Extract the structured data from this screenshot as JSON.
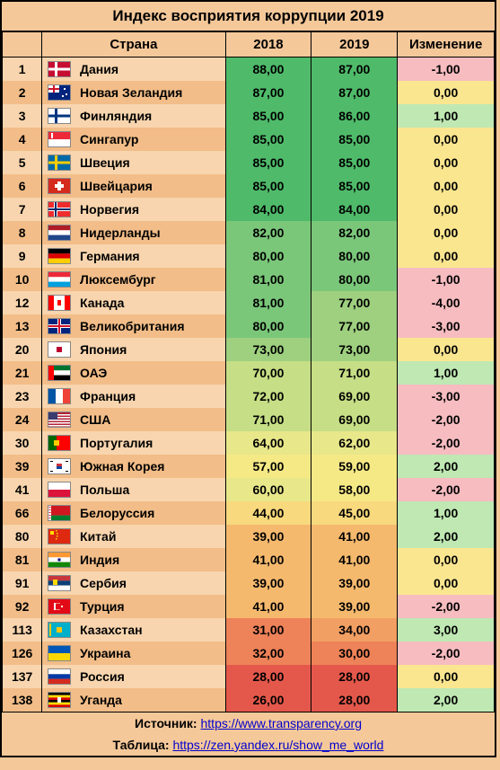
{
  "title": "Индекс восприятия коррупции 2019",
  "columns": {
    "rank": "",
    "country": "Страна",
    "y2018": "2018",
    "y2019": "2019",
    "change": "Изменение"
  },
  "col_widths": {
    "rank": 36,
    "flag": 30,
    "country": 160,
    "val": 90,
    "change": 100
  },
  "fonts": {
    "title": 17,
    "header": 15,
    "cell": 14,
    "footer": 14
  },
  "stripe_colors": {
    "odd": "#f8d5ae",
    "even": "#f2bd88",
    "base": "#f5c89a"
  },
  "score_palette": [
    {
      "min": 84,
      "color": "#4fbb6a"
    },
    {
      "min": 80,
      "color": "#7bc77a"
    },
    {
      "min": 73,
      "color": "#9ed07f"
    },
    {
      "min": 69,
      "color": "#c6de85"
    },
    {
      "min": 60,
      "color": "#e8e78a"
    },
    {
      "min": 55,
      "color": "#f5e986"
    },
    {
      "min": 44,
      "color": "#f8d97d"
    },
    {
      "min": 39,
      "color": "#f5b96e"
    },
    {
      "min": 34,
      "color": "#f29f63"
    },
    {
      "min": 30,
      "color": "#ee8258"
    },
    {
      "min": 0,
      "color": "#e4584b"
    }
  ],
  "change_colors": {
    "pos": "#bfe8b3",
    "zero": "#fbe690",
    "neg": "#f6bcc0"
  },
  "rows": [
    {
      "rank": 1,
      "country": "Дания",
      "y2018": 88,
      "y2019": 87,
      "change": -1,
      "flag": [
        [
          "#c60c30",
          "0,0,24,16"
        ],
        [
          "#fff",
          "7,0,3,16"
        ],
        [
          "#fff",
          "0,6.5,24,3"
        ]
      ]
    },
    {
      "rank": 2,
      "country": "Новая Зеландия",
      "y2018": 87,
      "y2019": 87,
      "change": 0,
      "flag": [
        [
          "#00247d",
          "0,0,24,16"
        ],
        [
          "#fff",
          "0,0,12,8"
        ],
        [
          "#cc142b",
          "0,3,12,2"
        ],
        [
          "#cc142b",
          "5,0,2,8"
        ],
        [
          "#fff",
          "17,3,2,2"
        ],
        [
          "#fff",
          "19,9,2,2"
        ],
        [
          "#fff",
          "15,11,2,2"
        ]
      ]
    },
    {
      "rank": 3,
      "country": "Финляндия",
      "y2018": 85,
      "y2019": 86,
      "change": 1,
      "flag": [
        [
          "#fff",
          "0,0,24,16"
        ],
        [
          "#003580",
          "7,0,3,16"
        ],
        [
          "#003580",
          "0,6.5,24,3"
        ]
      ]
    },
    {
      "rank": 4,
      "country": "Сингапур",
      "y2018": 85,
      "y2019": 85,
      "change": 0,
      "flag": [
        [
          "#ed2939",
          "0,0,24,8"
        ],
        [
          "#fff",
          "0,8,24,8"
        ],
        [
          "#fff",
          "3,1,5,6"
        ],
        [
          "#ed2939",
          "5,1,5,6"
        ]
      ]
    },
    {
      "rank": 5,
      "country": "Швеция",
      "y2018": 85,
      "y2019": 85,
      "change": 0,
      "flag": [
        [
          "#006aa7",
          "0,0,24,16"
        ],
        [
          "#fecc00",
          "7,0,3,16"
        ],
        [
          "#fecc00",
          "0,6.5,24,3"
        ]
      ]
    },
    {
      "rank": 6,
      "country": "Швейцария",
      "y2018": 85,
      "y2019": 85,
      "change": 0,
      "flag": [
        [
          "#d52b1e",
          "0,0,24,16"
        ],
        [
          "#fff",
          "10,3,4,10"
        ],
        [
          "#fff",
          "7,6,10,4"
        ]
      ]
    },
    {
      "rank": 7,
      "country": "Норвегия",
      "y2018": 84,
      "y2019": 84,
      "change": 0,
      "flag": [
        [
          "#ef2b2d",
          "0,0,24,16"
        ],
        [
          "#fff",
          "6,0,4,16"
        ],
        [
          "#fff",
          "0,6,24,4"
        ],
        [
          "#002868",
          "7,0,2,16"
        ],
        [
          "#002868",
          "0,7,24,2"
        ]
      ]
    },
    {
      "rank": 8,
      "country": "Нидерланды",
      "y2018": 82,
      "y2019": 82,
      "change": 0,
      "flag": [
        [
          "#ae1c28",
          "0,0,24,5.3"
        ],
        [
          "#fff",
          "0,5.3,24,5.3"
        ],
        [
          "#21468b",
          "0,10.6,24,5.4"
        ]
      ]
    },
    {
      "rank": 9,
      "country": "Германия",
      "y2018": 80,
      "y2019": 80,
      "change": 0,
      "flag": [
        [
          "#000",
          "0,0,24,5.3"
        ],
        [
          "#dd0000",
          "0,5.3,24,5.3"
        ],
        [
          "#ffce00",
          "0,10.6,24,5.4"
        ]
      ]
    },
    {
      "rank": 10,
      "country": "Люксембург",
      "y2018": 81,
      "y2019": 80,
      "change": -1,
      "flag": [
        [
          "#ed2939",
          "0,0,24,5.3"
        ],
        [
          "#fff",
          "0,5.3,24,5.3"
        ],
        [
          "#00a1de",
          "0,10.6,24,5.4"
        ]
      ]
    },
    {
      "rank": 12,
      "country": "Канада",
      "y2018": 81,
      "y2019": 77,
      "change": -4,
      "flag": [
        [
          "#ff0000",
          "0,0,6,16"
        ],
        [
          "#fff",
          "6,0,12,16"
        ],
        [
          "#ff0000",
          "18,0,6,16"
        ],
        [
          "#ff0000",
          "10,5,4,6"
        ]
      ]
    },
    {
      "rank": 13,
      "country": "Великобритания",
      "y2018": 80,
      "y2019": 77,
      "change": -3,
      "flag": [
        [
          "#00247d",
          "0,0,24,16"
        ],
        [
          "#fff",
          "0,6,24,4"
        ],
        [
          "#fff",
          "10,0,4,16"
        ],
        [
          "#cf142b",
          "0,7,24,2"
        ],
        [
          "#cf142b",
          "11,0,2,16"
        ]
      ]
    },
    {
      "rank": 20,
      "country": "Япония",
      "y2018": 73,
      "y2019": 73,
      "change": 0,
      "flag": [
        [
          "#fff",
          "0,0,24,16"
        ],
        [
          "#bc002d",
          "9,5,6,6"
        ]
      ]
    },
    {
      "rank": 21,
      "country": "ОАЭ",
      "y2018": 70,
      "y2019": 71,
      "change": 1,
      "flag": [
        [
          "#ff0000",
          "0,0,6,16"
        ],
        [
          "#00732f",
          "6,0,18,5.3"
        ],
        [
          "#fff",
          "6,5.3,18,5.3"
        ],
        [
          "#000",
          "6,10.6,18,5.4"
        ]
      ]
    },
    {
      "rank": 23,
      "country": "Франция",
      "y2018": 72,
      "y2019": 69,
      "change": -3,
      "flag": [
        [
          "#0055a4",
          "0,0,8,16"
        ],
        [
          "#fff",
          "8,0,8,16"
        ],
        [
          "#ef4135",
          "16,0,8,16"
        ]
      ]
    },
    {
      "rank": 24,
      "country": "США",
      "y2018": 71,
      "y2019": 69,
      "change": -2,
      "flag": [
        [
          "#b22234",
          "0,0,24,16"
        ],
        [
          "#fff",
          "0,2,24,1.5"
        ],
        [
          "#fff",
          "0,5,24,1.5"
        ],
        [
          "#fff",
          "0,8,24,1.5"
        ],
        [
          "#fff",
          "0,11,24,1.5"
        ],
        [
          "#fff",
          "0,14,24,1.5"
        ],
        [
          "#3c3b6e",
          "0,0,10,8"
        ]
      ]
    },
    {
      "rank": 30,
      "country": "Португалия",
      "y2018": 64,
      "y2019": 62,
      "change": -2,
      "flag": [
        [
          "#006600",
          "0,0,9,16"
        ],
        [
          "#ff0000",
          "9,0,15,16"
        ],
        [
          "#ffcc00",
          "6,5,6,6"
        ]
      ]
    },
    {
      "rank": 39,
      "country": "Южная Корея",
      "y2018": 57,
      "y2019": 59,
      "change": 2,
      "flag": [
        [
          "#fff",
          "0,0,24,16"
        ],
        [
          "#cd2e3a",
          "9,5,6,3"
        ],
        [
          "#0047a0",
          "9,8,6,3"
        ],
        [
          "#000",
          "2,2,3,1"
        ],
        [
          "#000",
          "19,2,3,1"
        ],
        [
          "#000",
          "2,13,3,1"
        ],
        [
          "#000",
          "19,13,3,1"
        ]
      ]
    },
    {
      "rank": 41,
      "country": "Польша",
      "y2018": 60,
      "y2019": 58,
      "change": -2,
      "flag": [
        [
          "#fff",
          "0,0,24,8"
        ],
        [
          "#dc143c",
          "0,8,24,8"
        ]
      ]
    },
    {
      "rank": 66,
      "country": "Белоруссия",
      "y2018": 44,
      "y2019": 45,
      "change": 1,
      "flag": [
        [
          "#ce1720",
          "0,0,24,10.6"
        ],
        [
          "#007c30",
          "0,10.6,24,5.4"
        ],
        [
          "#fff",
          "0,0,3,16"
        ],
        [
          "#ce1720",
          "0.5,1,2,1"
        ],
        [
          "#ce1720",
          "0.5,4,2,1"
        ],
        [
          "#ce1720",
          "0.5,7,2,1"
        ],
        [
          "#ce1720",
          "0.5,10,2,1"
        ],
        [
          "#ce1720",
          "0.5,13,2,1"
        ]
      ]
    },
    {
      "rank": 80,
      "country": "Китай",
      "y2018": 39,
      "y2019": 41,
      "change": 2,
      "flag": [
        [
          "#de2910",
          "0,0,24,16"
        ],
        [
          "#ffde00",
          "2,2,4,4"
        ],
        [
          "#ffde00",
          "8,1,1.5,1.5"
        ],
        [
          "#ffde00",
          "9,4,1.5,1.5"
        ],
        [
          "#ffde00",
          "9,7,1.5,1.5"
        ],
        [
          "#ffde00",
          "8,10,1.5,1.5"
        ]
      ]
    },
    {
      "rank": 81,
      "country": "Индия",
      "y2018": 41,
      "y2019": 41,
      "change": 0,
      "flag": [
        [
          "#ff9933",
          "0,0,24,5.3"
        ],
        [
          "#fff",
          "0,5.3,24,5.3"
        ],
        [
          "#138808",
          "0,10.6,24,5.4"
        ],
        [
          "#000080",
          "10.5,6.5,3,3"
        ]
      ]
    },
    {
      "rank": 91,
      "country": "Сербия",
      "y2018": 39,
      "y2019": 39,
      "change": 0,
      "flag": [
        [
          "#c6363c",
          "0,0,24,5.3"
        ],
        [
          "#0c4076",
          "0,5.3,24,5.3"
        ],
        [
          "#fff",
          "0,10.6,24,5.4"
        ],
        [
          "#ffd700",
          "5,4,5,6"
        ]
      ]
    },
    {
      "rank": 92,
      "country": "Турция",
      "y2018": 41,
      "y2019": 39,
      "change": -2,
      "flag": [
        [
          "#e30a17",
          "0,0,24,16"
        ],
        [
          "#fff",
          "6,4,7,8"
        ],
        [
          "#e30a17",
          "8,4.5,7,7"
        ],
        [
          "#fff",
          "14,7,2,2"
        ]
      ]
    },
    {
      "rank": 113,
      "country": "Казахстан",
      "y2018": 31,
      "y2019": 34,
      "change": 3,
      "flag": [
        [
          "#00afca",
          "0,0,24,16"
        ],
        [
          "#fec50c",
          "9,5,6,6"
        ],
        [
          "#fec50c",
          "1,1,2,14"
        ]
      ]
    },
    {
      "rank": 126,
      "country": "Украина",
      "y2018": 32,
      "y2019": 30,
      "change": -2,
      "flag": [
        [
          "#0057b7",
          "0,0,24,8"
        ],
        [
          "#ffd700",
          "0,8,24,8"
        ]
      ]
    },
    {
      "rank": 137,
      "country": "Россия",
      "y2018": 28,
      "y2019": 28,
      "change": 0,
      "flag": [
        [
          "#fff",
          "0,0,24,5.3"
        ],
        [
          "#0039a6",
          "0,5.3,24,5.3"
        ],
        [
          "#d52b1e",
          "0,10.6,24,5.4"
        ]
      ]
    },
    {
      "rank": 138,
      "country": "Уганда",
      "y2018": 26,
      "y2019": 28,
      "change": 2,
      "flag": [
        [
          "#000",
          "0,0,24,2.7"
        ],
        [
          "#fcdc04",
          "0,2.7,24,2.7"
        ],
        [
          "#d90000",
          "0,5.4,24,2.6"
        ],
        [
          "#000",
          "0,8,24,2.7"
        ],
        [
          "#fcdc04",
          "0,10.7,24,2.7"
        ],
        [
          "#d90000",
          "0,13.4,24,2.6"
        ],
        [
          "#fff",
          "10,5,4,6"
        ]
      ]
    }
  ],
  "footer": {
    "source_label": "Источник:",
    "source_url": "https://www.transparency.org",
    "table_label": "Таблица:",
    "table_url": "https://zen.yandex.ru/show_me_world"
  }
}
